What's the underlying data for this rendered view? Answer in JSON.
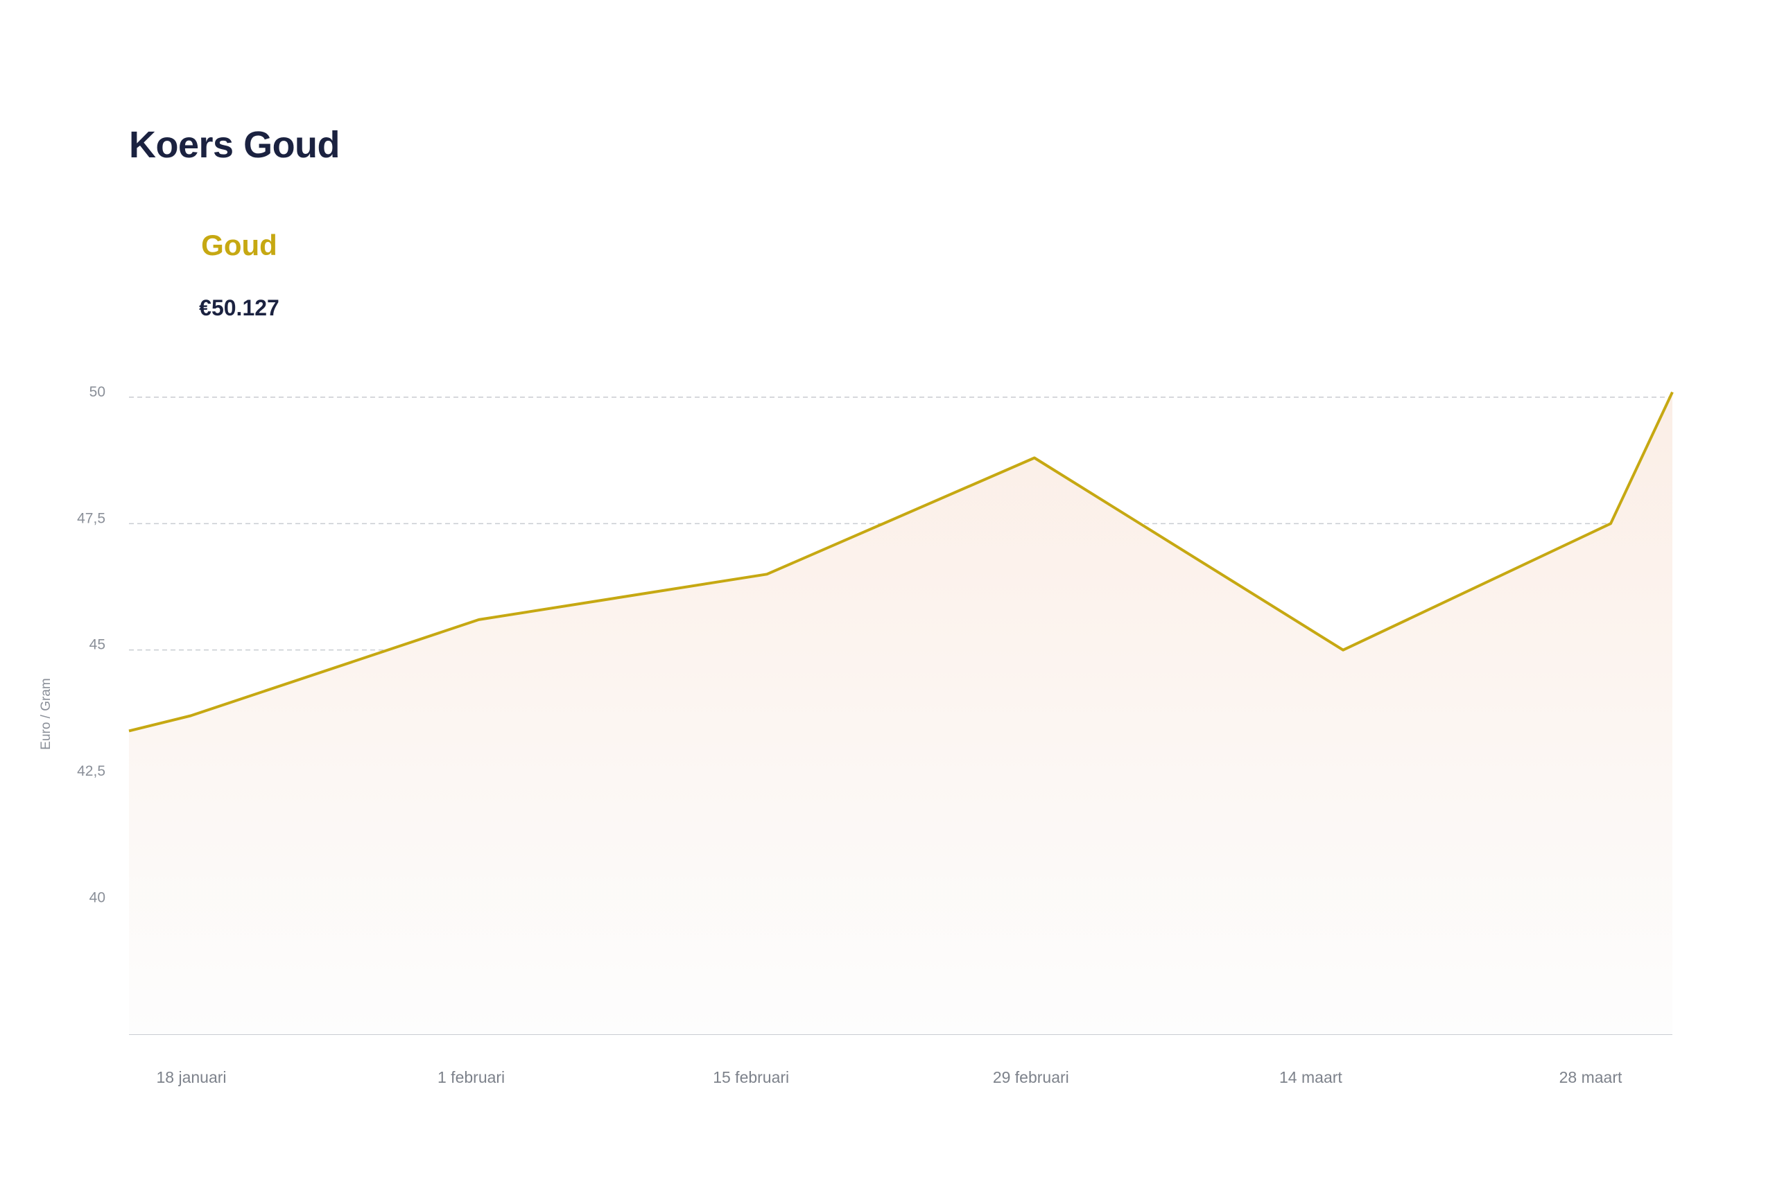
{
  "header": {
    "title": "Koers Goud"
  },
  "series_card": {
    "name": "Goud",
    "price": "€50.127"
  },
  "colors": {
    "line": "#c6a812",
    "area_top": "#fbeee6",
    "area_bottom": "#fdfdfd",
    "grid": "#c9ccd1",
    "baseline": "#c9ccd1",
    "title": "#1b2240"
  },
  "chart_data": {
    "type": "area",
    "title": "Koers Goud",
    "ylabel": "Euro / Gram",
    "xlabel": "",
    "grid": true,
    "ylim": [
      37.4,
      50
    ],
    "yticks": [
      50,
      47.5,
      45,
      42.5,
      40
    ],
    "ytick_labels": [
      "50",
      "47,5",
      "45",
      "42,5",
      "40"
    ],
    "x_labels": [
      "18 januari",
      "1 februari",
      "15 februari",
      "29 februari",
      "14 maart",
      "28 maart"
    ],
    "series": [
      {
        "name": "Goud",
        "x": [
          "2024-01-15",
          "2024-01-18",
          "2024-02-01",
          "2024-02-15",
          "2024-02-28",
          "2024-03-14",
          "2024-03-27",
          "2024-03-30"
        ],
        "values": [
          43.4,
          43.7,
          45.6,
          46.5,
          48.8,
          45.0,
          47.5,
          50.1
        ]
      }
    ]
  }
}
